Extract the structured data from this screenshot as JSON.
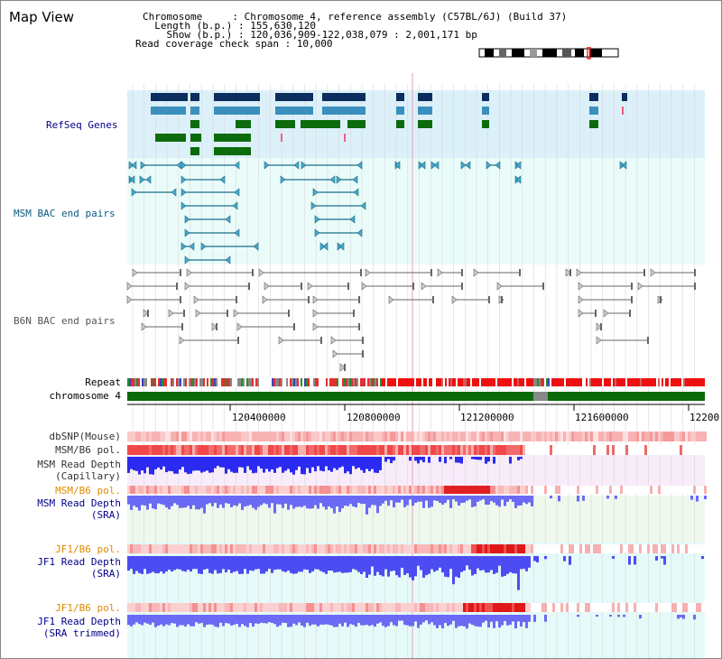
{
  "header": {
    "title": "Map View",
    "chromosome_line": "Chromosome     : Chromosome 4, reference assembly (C57BL/6J) (Build 37)",
    "length_line": "  Length (b.p.) : 155,630,120",
    "show_line": "    Show (b.p.) : 120,036,909-122,038,079 : 2,001,171 bp",
    "coverage_line": "Read coverage check span : 10,000"
  },
  "tracks": {
    "refseq": "RefSeq Genes",
    "msm_bac": "MSM BAC end pairs",
    "b6n_bac": "B6N BAC end pairs",
    "repeat": "Repeat",
    "chromosome": "chromosome 4",
    "dbsnp": "dbSNP(Mouse)",
    "msm_b6_pol_1": "MSM/B6 pol.",
    "msm_read_depth_cap_1": "MSM Read Depth",
    "msm_read_depth_cap_2": "(Capillary)",
    "msm_b6_pol_2": "MSM/B6 pol.",
    "msm_read_depth_sra_1": "MSM Read Depth",
    "msm_read_depth_sra_2": "(SRA)",
    "jf1_b6_pol_1": "JF1/B6 pol.",
    "jf1_read_depth_sra_1": "JF1 Read Depth",
    "jf1_read_depth_sra_2": "(SRA)",
    "jf1_b6_pol_2": "JF1/B6 pol.",
    "jf1_read_depth_trim_1": "JF1 Read Depth",
    "jf1_read_depth_trim_2": "(SRA trimmed)"
  },
  "axis": {
    "ticks": [
      "120400000",
      "120800000",
      "121200000",
      "121600000",
      "12200"
    ]
  },
  "colors": {
    "refseq_bg": "#dcf0fa",
    "bac_bg": "#eafcfa",
    "gene_dark": "#0b2e5e",
    "gene_mid": "#3a8fbd",
    "gene_green": "#0c6b0c",
    "msm_line": "#1a6e8a",
    "b6n_line": "#666666",
    "pol_red": "#f03030",
    "depth_blue": "#2020ee",
    "label_blue": "#00008b",
    "label_orange": "#e08a00",
    "label_teal": "#0a5a80"
  }
}
